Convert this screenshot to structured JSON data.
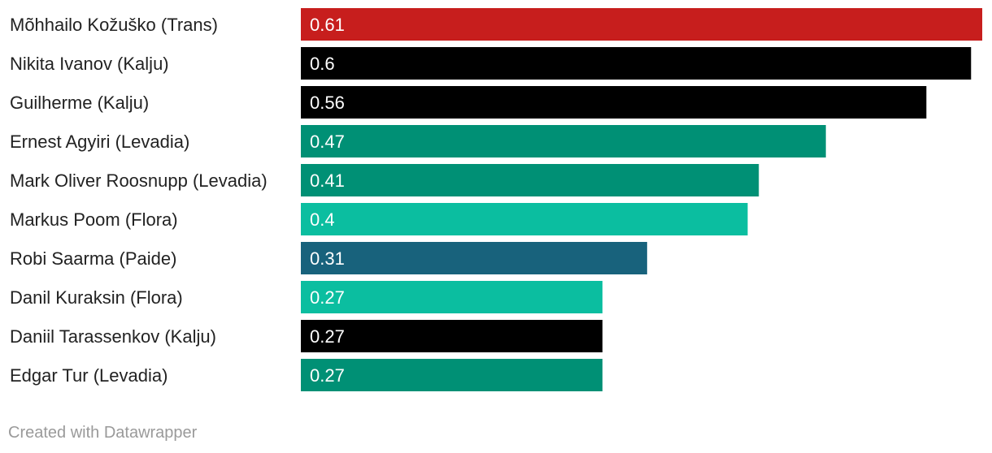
{
  "chart_data": {
    "type": "bar",
    "orientation": "horizontal",
    "categories": [
      "Mõhhailo Kožuško (Trans)",
      "Nikita Ivanov (Kalju)",
      "Guilherme (Kalju)",
      "Ernest Agyiri (Levadia)",
      "Mark Oliver Roosnupp (Levadia)",
      "Markus Poom (Flora)",
      "Robi Saarma (Paide)",
      "Danil Kuraksin (Flora)",
      "Daniil Tarassenkov (Kalju)",
      "Edgar Tur (Levadia)"
    ],
    "values": [
      0.61,
      0.6,
      0.56,
      0.47,
      0.41,
      0.4,
      0.31,
      0.27,
      0.27,
      0.27
    ],
    "value_labels": [
      "0.61",
      "0.6",
      "0.56",
      "0.47",
      "0.41",
      "0.4",
      "0.31",
      "0.27",
      "0.27",
      "0.27"
    ],
    "colors": [
      "#c71e1d",
      "#000000",
      "#000000",
      "#009075",
      "#009075",
      "#0bbea0",
      "#18627c",
      "#0bbea0",
      "#000000",
      "#009075"
    ],
    "xlim": [
      0,
      0.61
    ],
    "grid": false,
    "legend": "none"
  },
  "footer": {
    "credit": "Created with Datawrapper"
  }
}
